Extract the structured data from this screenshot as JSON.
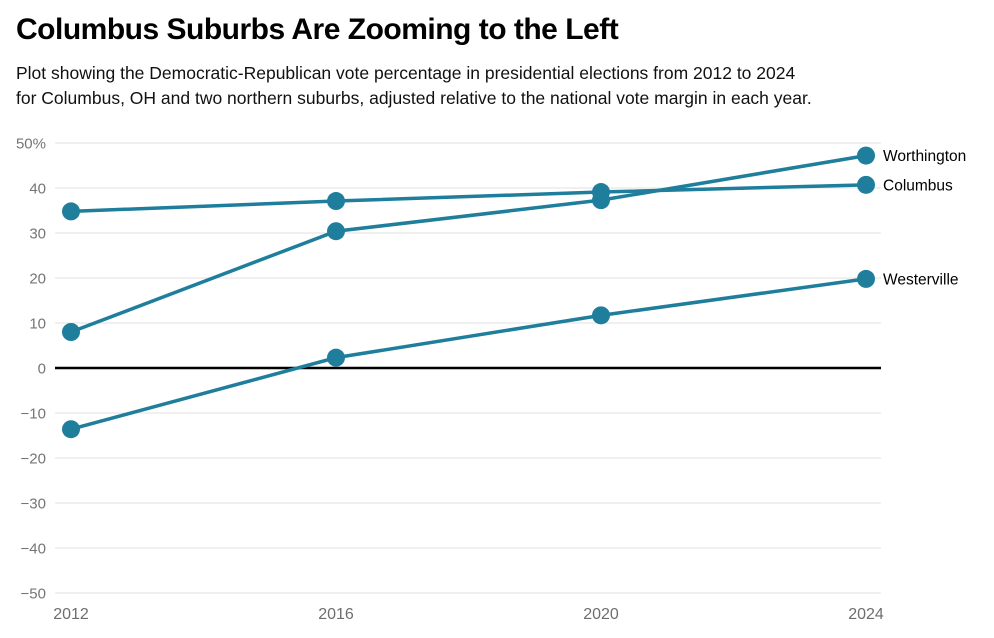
{
  "header": {
    "title": "Columbus Suburbs Are Zooming to the Left",
    "subtitle_lines": [
      "Plot showing the Democratic-Republican vote percentage in presidential elections from 2012 to 2024",
      "for Columbus, OH and two northern suburbs, adjusted relative to the national vote margin in each year."
    ]
  },
  "chart_data": {
    "type": "line",
    "x": [
      2012,
      2016,
      2020,
      2024
    ],
    "xtick_labels": [
      "2012",
      "2016",
      "2020",
      "2024"
    ],
    "series": [
      {
        "name": "Worthington",
        "values": [
          8.0,
          30.4,
          37.3,
          47.2
        ]
      },
      {
        "name": "Columbus",
        "values": [
          34.8,
          37.1,
          39.1,
          40.7
        ]
      },
      {
        "name": "Westerville",
        "values": [
          -13.6,
          2.3,
          11.7,
          19.8
        ]
      }
    ],
    "ylim": [
      -50,
      50
    ],
    "ytick_values": [
      50,
      40,
      30,
      20,
      10,
      0,
      -10,
      -20,
      -30,
      -40,
      -50
    ],
    "ytick_labels": [
      "50%",
      "40",
      "30",
      "20",
      "10",
      "0",
      "−10",
      "−20",
      "−30",
      "−40",
      "−50"
    ],
    "grid": true,
    "legend_position": "end-labels-right",
    "colors": {
      "line": "#1e7e9c",
      "grid": "#e0e0e0",
      "zero_line": "#000000",
      "axis_text": "#757575",
      "series_label_text": "#000000"
    }
  }
}
